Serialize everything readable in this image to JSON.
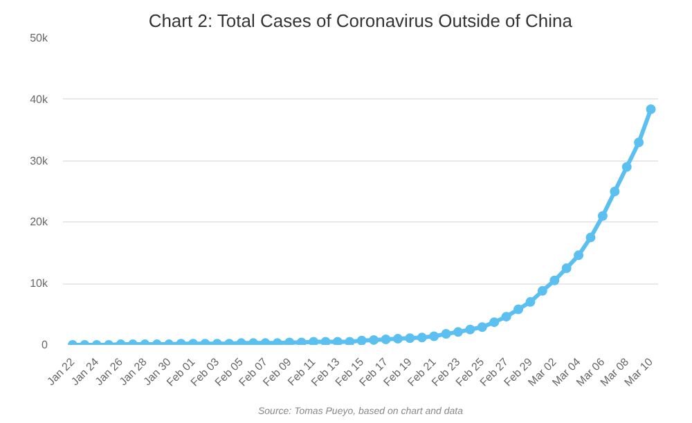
{
  "chart_data": {
    "type": "line",
    "title": "Chart 2: Total Cases of Coronavirus Outside of China",
    "categories": [
      "Jan 22",
      null,
      "Jan 24",
      null,
      "Jan 26",
      null,
      "Jan 28",
      null,
      "Jan 30",
      null,
      "Feb 01",
      null,
      "Feb 03",
      null,
      "Feb 05",
      null,
      "Feb 07",
      null,
      "Feb 09",
      null,
      "Feb 11",
      null,
      "Feb 13",
      null,
      "Feb 15",
      null,
      "Feb 17",
      null,
      "Feb 19",
      null,
      "Feb 21",
      null,
      "Feb 23",
      null,
      "Feb 25",
      null,
      "Feb 27",
      null,
      "Feb 29",
      null,
      "Mar 02",
      null,
      "Mar 04",
      null,
      "Mar 06",
      null,
      "Mar 08",
      null,
      "Mar 10"
    ],
    "series": [
      {
        "color": "#5bc0f0",
        "values": [
          0,
          0,
          0,
          0,
          100,
          100,
          100,
          100,
          100,
          200,
          200,
          200,
          200,
          200,
          300,
          300,
          300,
          300,
          400,
          400,
          500,
          500,
          500,
          500,
          700,
          800,
          900,
          1000,
          1100,
          1200,
          1400,
          1800,
          2100,
          2500,
          2900,
          3700,
          4600,
          5800,
          7000,
          8800,
          10500,
          12500,
          14600,
          17500,
          21000,
          25000,
          29000,
          33000,
          38400
        ]
      }
    ],
    "ylim": [
      0,
      50000
    ],
    "yticks": [
      0,
      {
        "value": 10000,
        "label": "10k"
      },
      {
        "value": 20000,
        "label": "20k"
      },
      {
        "value": 30000,
        "label": "30k"
      },
      {
        "value": 40000,
        "label": "40k"
      },
      {
        "value": 50000,
        "label": "50k"
      }
    ],
    "grid": "y",
    "marker": "circle",
    "line_style": "solid",
    "annotations": [
      "Source: Tomas Pueyo, based on chart and data"
    ]
  }
}
